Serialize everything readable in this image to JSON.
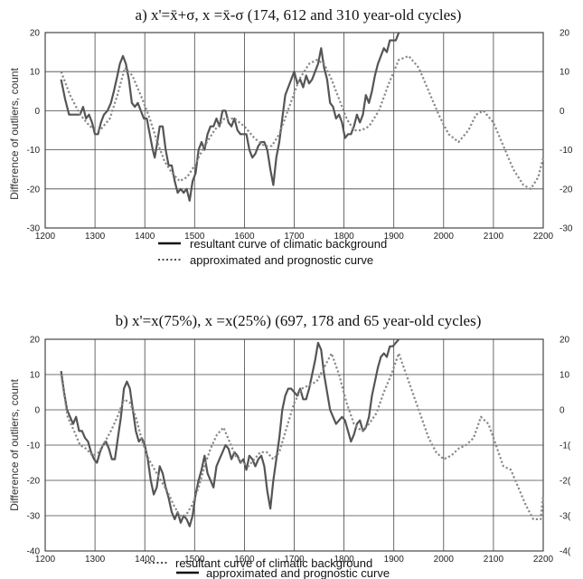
{
  "chart_data": [
    {
      "type": "line",
      "title": "a) x'=x̄+σ, x =x̄-σ (174, 612 and 310 year-old cycles)",
      "ylabel": "Difference of outliers, count",
      "xlim": [
        1200,
        2200
      ],
      "ylim": [
        -30,
        20
      ],
      "x_ticks": [
        "1200",
        "1300",
        "1400",
        "1500",
        "1600",
        "1700",
        "1800",
        "1900",
        "2000",
        "2100",
        "2200"
      ],
      "y_ticks_left": [
        "20",
        "10",
        "0",
        "-10",
        "-20",
        "-30"
      ],
      "y_ticks_right": [
        "20",
        "10",
        "0",
        "-10",
        "-20",
        "-30"
      ],
      "grid": true,
      "legend": [
        {
          "label": "resultant curve of climatic background",
          "style": "solid"
        },
        {
          "label": "approximated and prognostic curve",
          "style": "dotted"
        }
      ],
      "series": [
        {
          "style": "solid",
          "color": "#555555",
          "x": [
            1232,
            1240,
            1248,
            1255,
            1262,
            1270,
            1276,
            1282,
            1288,
            1294,
            1300,
            1306,
            1312,
            1318,
            1325,
            1332,
            1338,
            1345,
            1350,
            1356,
            1362,
            1368,
            1374,
            1380,
            1386,
            1392,
            1398,
            1404,
            1410,
            1416,
            1420,
            1424,
            1430,
            1436,
            1442,
            1448,
            1454,
            1460,
            1466,
            1472,
            1478,
            1484,
            1490,
            1496,
            1502,
            1508,
            1514,
            1520,
            1526,
            1532,
            1538,
            1544,
            1550,
            1556,
            1562,
            1568,
            1574,
            1580,
            1586,
            1592,
            1598,
            1604,
            1610,
            1616,
            1622,
            1628,
            1634,
            1640,
            1646,
            1652,
            1658,
            1664,
            1670,
            1676,
            1682,
            1688,
            1694,
            1700,
            1706,
            1712,
            1718,
            1724,
            1730,
            1736,
            1742,
            1748,
            1754,
            1760,
            1766,
            1772,
            1778,
            1784,
            1790,
            1796,
            1802,
            1808,
            1814,
            1820,
            1826,
            1832,
            1838,
            1844,
            1850,
            1856,
            1862,
            1868,
            1874,
            1880,
            1886,
            1892,
            1898,
            1904,
            1910
          ],
          "y": [
            8,
            3,
            -1,
            -1,
            -1,
            -1,
            1,
            -2,
            -1,
            -3,
            -6,
            -6,
            -3,
            -1,
            0,
            2,
            5,
            9,
            12,
            14,
            12,
            8,
            2,
            1,
            2,
            0,
            -2,
            -2,
            -6,
            -10,
            -12,
            -9,
            -4,
            -4,
            -10,
            -14,
            -14,
            -18,
            -21,
            -20,
            -21,
            -20,
            -23,
            -18,
            -16,
            -10,
            -8,
            -10,
            -6,
            -4,
            -4,
            -2,
            -4,
            0,
            0,
            -3,
            -4,
            -2,
            -5,
            -6,
            -6,
            -6,
            -10,
            -12,
            -11,
            -9,
            -8,
            -8,
            -10,
            -15,
            -19,
            -12,
            -8,
            -2,
            4,
            6,
            8,
            10,
            7,
            8,
            6,
            9,
            7,
            8,
            10,
            12,
            16,
            11,
            8,
            2,
            1,
            -2,
            -1,
            -3,
            -7,
            -6,
            -6,
            -4,
            -1,
            -3,
            -1,
            4,
            2,
            5,
            9,
            12,
            14,
            16,
            15,
            18,
            18,
            18,
            20
          ]
        },
        {
          "style": "dotted",
          "color": "#888888",
          "x": [
            1232,
            1250,
            1270,
            1290,
            1310,
            1330,
            1345,
            1360,
            1375,
            1395,
            1410,
            1425,
            1440,
            1455,
            1470,
            1485,
            1500,
            1520,
            1540,
            1560,
            1580,
            1600,
            1620,
            1640,
            1655,
            1670,
            1690,
            1710,
            1730,
            1745,
            1760,
            1775,
            1790,
            1805,
            1820,
            1835,
            1850,
            1870,
            1890,
            1910,
            1930,
            1950,
            1970,
            1990,
            2010,
            2030,
            2050,
            2065,
            2080,
            2100,
            2120,
            2140,
            2160,
            2175,
            2190,
            2200
          ],
          "y": [
            10,
            4,
            -1,
            -4,
            -5,
            -2,
            4,
            11,
            9,
            3,
            -2,
            -8,
            -13,
            -16,
            -18,
            -17,
            -14,
            -9,
            -5,
            -2,
            -2,
            -4,
            -7,
            -9,
            -9,
            -6,
            1,
            8,
            12,
            13,
            12,
            8,
            3,
            -2,
            -5,
            -5,
            -4,
            0,
            7,
            13,
            14,
            11,
            5,
            -1,
            -6,
            -8,
            -5,
            -1,
            0,
            -3,
            -9,
            -15,
            -19,
            -20,
            -17,
            -12
          ]
        }
      ]
    },
    {
      "type": "line",
      "title": "b) x'=x(75%), x =x(25%) (697, 178 and 65 year-old cycles)",
      "ylabel": "Difference of outliers, count",
      "xlim": [
        1200,
        2200
      ],
      "ylim": [
        -40,
        20
      ],
      "x_ticks": [
        "1200",
        "1300",
        "1400",
        "1500",
        "1600",
        "1700",
        "1800",
        "1900",
        "2000",
        "2100",
        "2200"
      ],
      "y_ticks_left": [
        "20",
        "10",
        "0",
        "-10",
        "-20",
        "-30",
        "-40"
      ],
      "y_ticks_right": [
        "20",
        "10",
        "0",
        "-1(",
        "-2(",
        "-3(",
        "-4("
      ],
      "grid": true,
      "legend": [
        {
          "label": "resultant curve of climatic background",
          "style": "dotted"
        },
        {
          "label": "approximated and prognostic curve",
          "style": "solid"
        }
      ],
      "series": [
        {
          "style": "solid",
          "color": "#555555",
          "x": [
            1232,
            1238,
            1244,
            1250,
            1256,
            1262,
            1268,
            1274,
            1280,
            1286,
            1292,
            1298,
            1304,
            1310,
            1316,
            1322,
            1328,
            1334,
            1340,
            1346,
            1352,
            1358,
            1364,
            1370,
            1376,
            1382,
            1388,
            1394,
            1400,
            1406,
            1412,
            1418,
            1424,
            1430,
            1436,
            1442,
            1448,
            1454,
            1460,
            1466,
            1472,
            1478,
            1484,
            1490,
            1496,
            1502,
            1508,
            1514,
            1520,
            1526,
            1532,
            1538,
            1544,
            1550,
            1556,
            1562,
            1568,
            1574,
            1580,
            1586,
            1592,
            1598,
            1604,
            1610,
            1616,
            1622,
            1628,
            1634,
            1640,
            1646,
            1652,
            1658,
            1664,
            1670,
            1676,
            1682,
            1688,
            1694,
            1700,
            1706,
            1712,
            1718,
            1724,
            1730,
            1736,
            1742,
            1748,
            1754,
            1760,
            1766,
            1772,
            1778,
            1784,
            1790,
            1796,
            1802,
            1808,
            1814,
            1820,
            1826,
            1832,
            1838,
            1844,
            1850,
            1856,
            1862,
            1868,
            1874,
            1880,
            1886,
            1892,
            1898,
            1904,
            1910
          ],
          "y": [
            11,
            5,
            0,
            -2,
            -4,
            -2,
            -6,
            -6,
            -8,
            -9,
            -12,
            -14,
            -15,
            -12,
            -10,
            -9,
            -11,
            -14,
            -14,
            -8,
            -2,
            6,
            8,
            6,
            0,
            -6,
            -9,
            -8,
            -10,
            -14,
            -20,
            -24,
            -22,
            -16,
            -18,
            -22,
            -25,
            -29,
            -31,
            -29,
            -32,
            -30,
            -31,
            -33,
            -30,
            -24,
            -20,
            -17,
            -13,
            -18,
            -20,
            -22,
            -16,
            -14,
            -12,
            -10,
            -11,
            -14,
            -12,
            -13,
            -15,
            -14,
            -17,
            -13,
            -14,
            -16,
            -14,
            -13,
            -16,
            -23,
            -28,
            -20,
            -14,
            -8,
            0,
            4,
            6,
            6,
            5,
            4,
            6,
            3,
            3,
            6,
            10,
            14,
            19,
            17,
            10,
            5,
            0,
            -2,
            -4,
            -3,
            -2,
            -3,
            -6,
            -9,
            -7,
            -4,
            -3,
            -6,
            -5,
            -2,
            4,
            8,
            12,
            15,
            16,
            15,
            18,
            18,
            19,
            20
          ]
        },
        {
          "style": "dotted",
          "color": "#888888",
          "x": [
            1232,
            1245,
            1258,
            1270,
            1282,
            1295,
            1308,
            1320,
            1332,
            1345,
            1358,
            1370,
            1382,
            1395,
            1408,
            1420,
            1432,
            1445,
            1458,
            1470,
            1482,
            1495,
            1508,
            1520,
            1532,
            1545,
            1558,
            1570,
            1582,
            1595,
            1608,
            1620,
            1632,
            1645,
            1658,
            1670,
            1685,
            1700,
            1715,
            1730,
            1745,
            1760,
            1775,
            1790,
            1805,
            1820,
            1835,
            1850,
            1865,
            1880,
            1895,
            1910,
            1925,
            1940,
            1955,
            1970,
            1985,
            2000,
            2015,
            2030,
            2045,
            2060,
            2075,
            2090,
            2105,
            2120,
            2135,
            2150,
            2165,
            2180,
            2195,
            2200
          ],
          "y": [
            10,
            -2,
            -6,
            -10,
            -11,
            -13,
            -12,
            -9,
            -6,
            -2,
            3,
            2,
            -2,
            -9,
            -14,
            -17,
            -20,
            -23,
            -27,
            -30,
            -30,
            -27,
            -22,
            -16,
            -11,
            -7,
            -5,
            -9,
            -13,
            -15,
            -16,
            -14,
            -12,
            -12,
            -14,
            -12,
            -5,
            2,
            6,
            7,
            8,
            12,
            16,
            10,
            2,
            -4,
            -6,
            -4,
            -1,
            5,
            10,
            16,
            10,
            4,
            -2,
            -8,
            -12,
            -14,
            -13,
            -11,
            -10,
            -8,
            -2,
            -4,
            -10,
            -16,
            -17,
            -22,
            -27,
            -31,
            -31,
            -24
          ]
        }
      ]
    }
  ]
}
